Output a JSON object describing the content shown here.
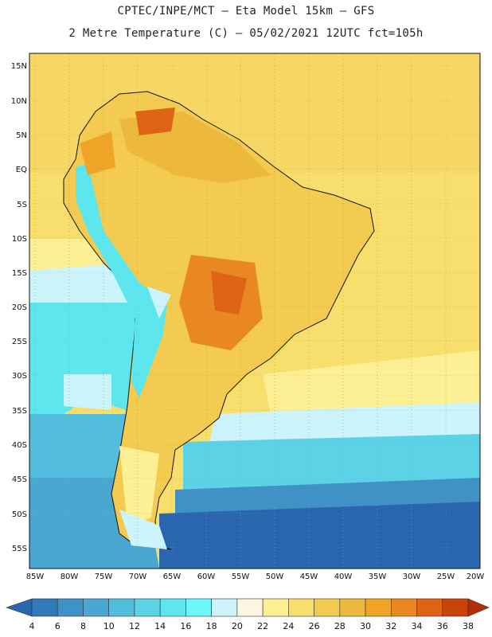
{
  "header": {
    "line1": "CPTEC/INPE/MCT –  Eta Model 15km – GFS",
    "line2": "2 Metre Temperature (C) – 05/02/2021 12UTC fct=105h"
  },
  "map": {
    "lat_labels": [
      "15N",
      "10N",
      "5N",
      "EQ",
      "5S",
      "10S",
      "15S",
      "20S",
      "25S",
      "30S",
      "35S",
      "40S",
      "45S",
      "50S",
      "55S"
    ],
    "lon_labels": [
      "85W",
      "80W",
      "75W",
      "70W",
      "65W",
      "60W",
      "55W",
      "50W",
      "45W",
      "40W",
      "35W",
      "30W",
      "25W",
      "20W"
    ]
  },
  "colorbar": {
    "ticks": [
      "4",
      "6",
      "8",
      "10",
      "12",
      "14",
      "16",
      "18",
      "20",
      "22",
      "24",
      "26",
      "28",
      "30",
      "32",
      "34",
      "36",
      "38"
    ],
    "colors": [
      "#2a66ae",
      "#3179b8",
      "#3f91c6",
      "#49a7d2",
      "#52bcdc",
      "#5bd2e6",
      "#5ee6ee",
      "#6cf7fb",
      "#cdf3fb",
      "#fdf6e0",
      "#fcef94",
      "#f8de6c",
      "#f2cb50",
      "#ecb93c",
      "#f1a528",
      "#e98822",
      "#dc6414",
      "#c84307",
      "#b22e04"
    ]
  }
}
